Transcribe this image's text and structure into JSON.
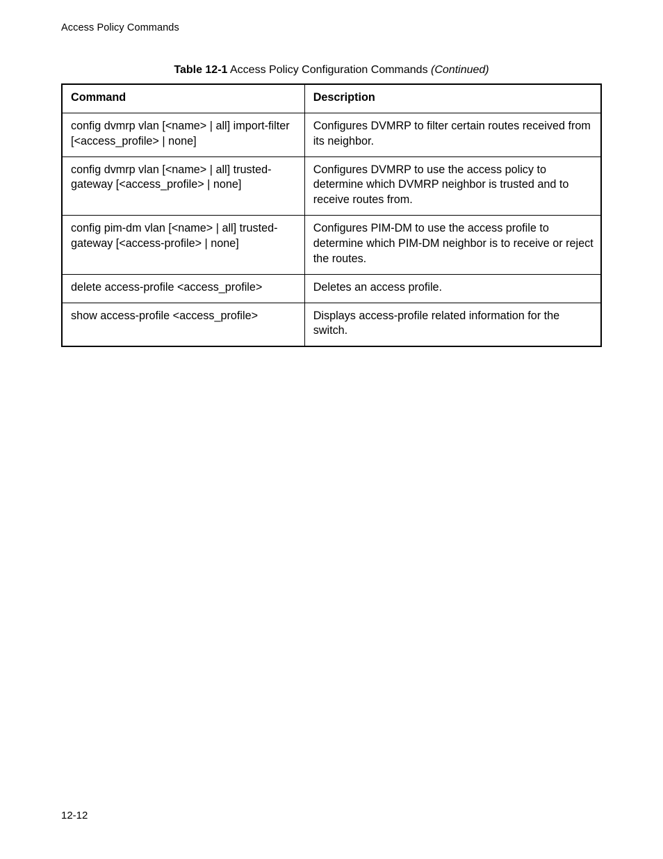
{
  "header": {
    "running_title": "Access Policy Commands"
  },
  "table": {
    "caption_prefix": "Table 12-1",
    "caption_title": "Access Policy Configuration Commands",
    "caption_suffix": "(Continued)",
    "columns": [
      "Command",
      "Description"
    ],
    "rows": [
      {
        "command": "config dvmrp vlan [<name> | all] import-filter [<access_profile> | none]",
        "description": "Configures DVMRP to filter certain routes received from its neighbor."
      },
      {
        "command": "config dvmrp vlan [<name> | all] trusted-gateway [<access_profile> | none]",
        "description": "Configures DVMRP to use the access policy to determine which DVMRP neighbor is trusted and to receive routes from."
      },
      {
        "command": "config pim-dm vlan [<name> | all] trusted-gateway [<access-profile> | none]",
        "description": "Configures PIM-DM to use the access profile to determine which PIM-DM neighbor is to receive or reject the routes."
      },
      {
        "command": "delete access-profile <access_profile>",
        "description": "Deletes an access profile."
      },
      {
        "command": "show access-profile <access_profile>",
        "description": "Displays access-profile related information for the switch."
      }
    ]
  },
  "footer": {
    "page_number": "12-12"
  }
}
